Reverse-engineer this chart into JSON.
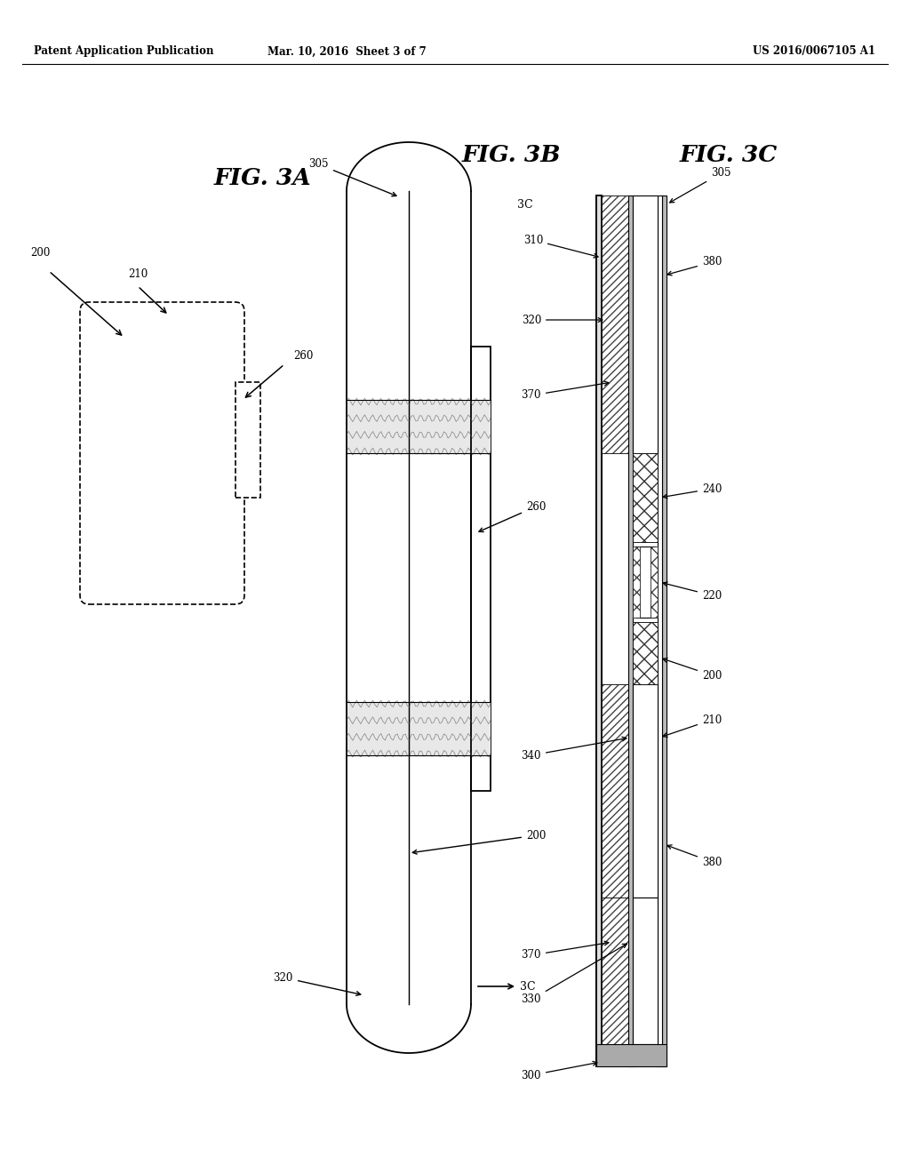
{
  "bg_color": "#ffffff",
  "header_left": "Patent Application Publication",
  "header_mid": "Mar. 10, 2016  Sheet 3 of 7",
  "header_right": "US 2016/0067105 A1",
  "fig3a_label": "FIG. 3A",
  "fig3b_label": "FIG. 3B",
  "fig3c_label": "FIG. 3C",
  "line_color": "#000000"
}
